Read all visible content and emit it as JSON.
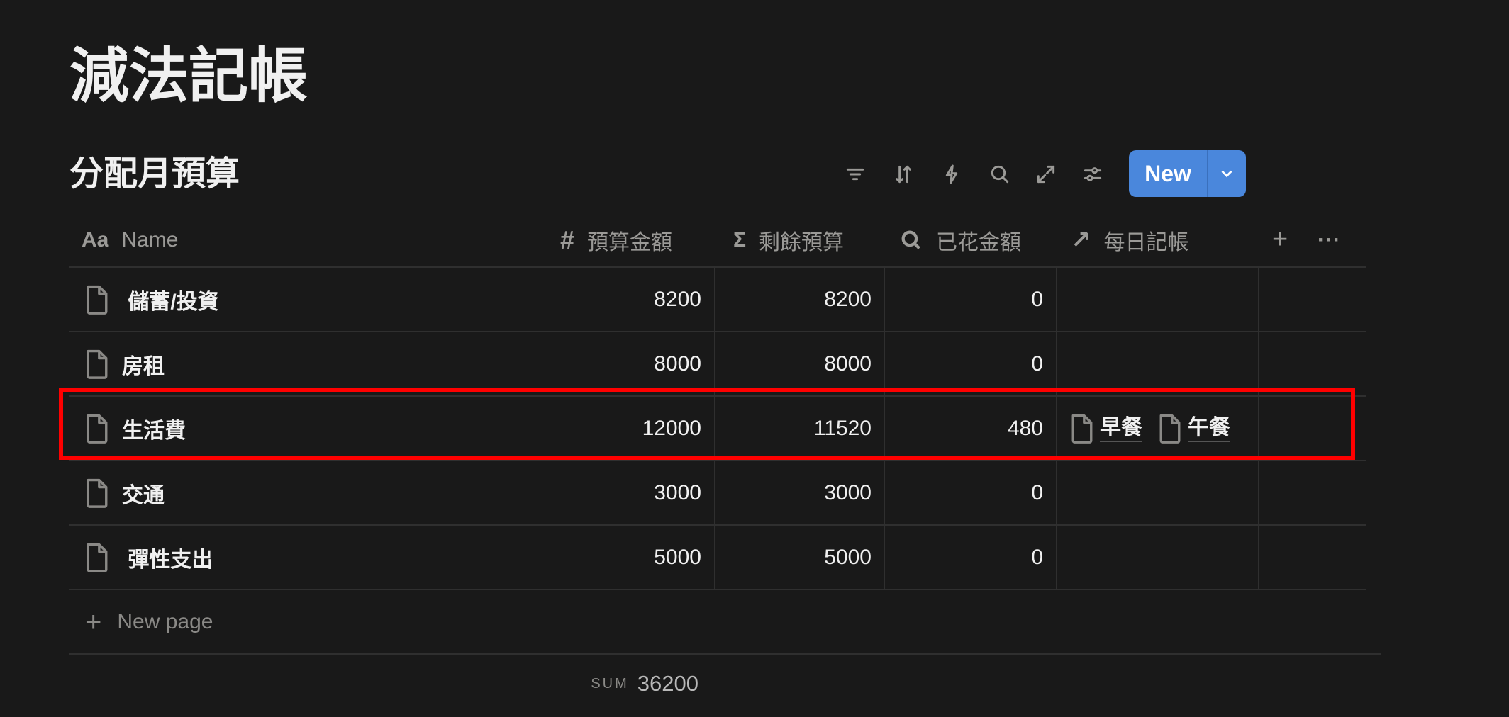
{
  "page": {
    "title": "減法記帳"
  },
  "database": {
    "title": "分配月預算",
    "toolbar": {
      "icons": [
        "filter-icon",
        "sort-icon",
        "lightning-icon",
        "search-icon",
        "expand-icon",
        "settings-sliders-icon"
      ],
      "new_label": "New"
    },
    "columns": [
      {
        "icon": "Aa",
        "label": "Name"
      },
      {
        "icon": "#",
        "label": "預算金額"
      },
      {
        "icon": "Σ",
        "label": "剩餘預算"
      },
      {
        "icon": "🔍",
        "label": "已花金額"
      },
      {
        "icon": "↗",
        "label": "每日記帳"
      }
    ],
    "rows": [
      {
        "name": " 儲蓄/投資",
        "budget": "8200",
        "remaining": "8200",
        "spent": "0",
        "relations": []
      },
      {
        "name": "房租",
        "budget": "8000",
        "remaining": "8000",
        "spent": "0",
        "relations": []
      },
      {
        "name": "生活費",
        "budget": "12000",
        "remaining": "11520",
        "spent": "480",
        "relations": [
          "早餐",
          "午餐"
        ]
      },
      {
        "name": "交通",
        "budget": "3000",
        "remaining": "3000",
        "spent": "0",
        "relations": []
      },
      {
        "name": " 彈性支出",
        "budget": "5000",
        "remaining": "5000",
        "spent": "0",
        "relations": []
      }
    ],
    "new_page_label": "New page",
    "sum": {
      "label": "SUM",
      "value": "36200"
    },
    "highlight_color": "#ff0000",
    "accent_color": "#4a87dc"
  }
}
